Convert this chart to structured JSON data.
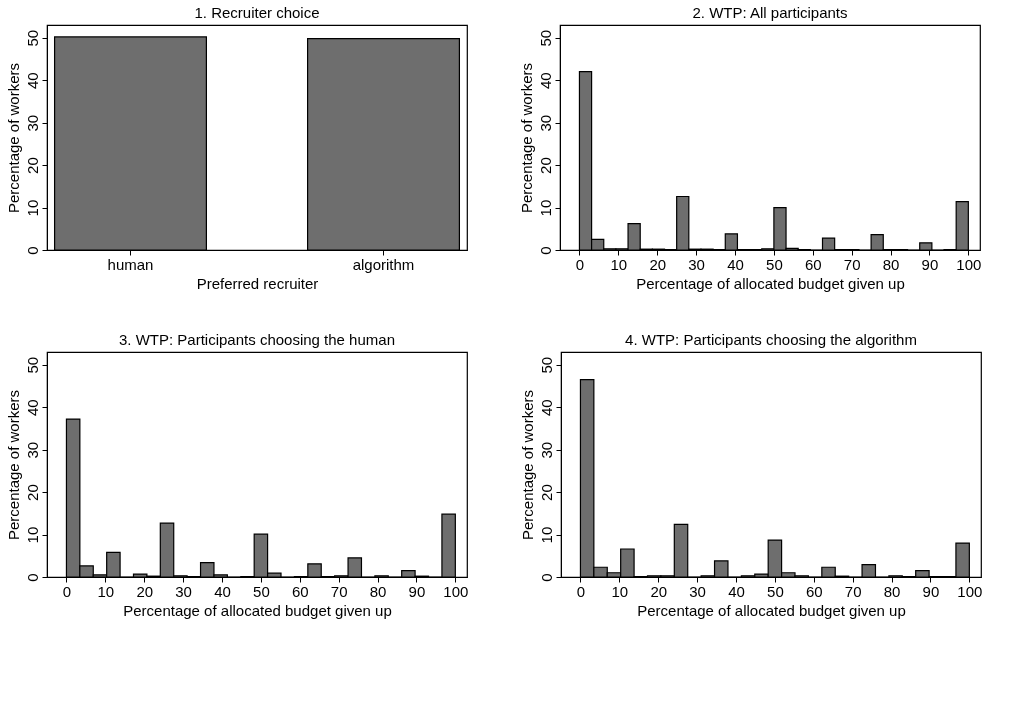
{
  "chart_data": [
    {
      "type": "bar",
      "title": "1. Recruiter choice",
      "xlabel": "Preferred recruiter",
      "ylabel": "Percentage of workers",
      "categories": [
        "human",
        "algorithm"
      ],
      "values": [
        50.2,
        49.8
      ],
      "color": "#6e6e6e",
      "ylim": [
        0,
        53
      ],
      "yticks": [
        0,
        10,
        20,
        30,
        40,
        50
      ]
    },
    {
      "type": "histogram",
      "title": "2. WTP: All participants",
      "xlabel": "Percentage of allocated budget given up",
      "ylabel": "Percentage of workers",
      "bins": [
        0,
        3.125,
        6.25,
        9.375,
        12.5,
        15.625,
        18.75,
        21.875,
        25,
        28.125,
        31.25,
        34.375,
        37.5,
        40.625,
        43.75,
        46.875,
        50,
        53.125,
        56.25,
        59.375,
        62.5,
        65.625,
        68.75,
        71.875,
        75,
        78.125,
        81.25,
        84.375,
        87.5,
        90.625,
        93.75,
        96.875,
        100
      ],
      "values": [
        42.0,
        2.5,
        0.3,
        0.3,
        6.2,
        0.2,
        0.2,
        0.1,
        12.6,
        0.2,
        0.2,
        0.1,
        3.8,
        0.1,
        0.1,
        0.3,
        10.0,
        0.4,
        0.1,
        0,
        2.8,
        0.1,
        0.1,
        0,
        3.6,
        0.1,
        0.1,
        0,
        1.7,
        0,
        0.1,
        11.4
      ],
      "color": "#6e6e6e",
      "xlim": [
        -5,
        103
      ],
      "xticks": [
        0,
        10,
        20,
        30,
        40,
        50,
        60,
        70,
        80,
        90,
        100
      ],
      "ylim": [
        0,
        53
      ],
      "yticks": [
        0,
        10,
        20,
        30,
        40,
        50
      ]
    },
    {
      "type": "histogram",
      "title": "3. WTP: Participants choosing the human",
      "xlabel": "Percentage of allocated budget given up",
      "ylabel": "Percentage of workers",
      "bins": [
        0,
        3.448,
        6.897,
        10.345,
        13.793,
        17.241,
        20.69,
        24.138,
        27.586,
        31.034,
        34.483,
        37.931,
        41.379,
        44.828,
        48.276,
        51.724,
        55.172,
        58.621,
        62.069,
        65.517,
        68.966,
        72.414,
        75.862,
        79.31,
        82.759,
        86.207,
        89.655,
        93.103,
        96.552,
        100
      ],
      "values": [
        37.2,
        2.6,
        0.5,
        5.8,
        0,
        0.7,
        0.2,
        12.7,
        0.3,
        0.1,
        3.4,
        0.5,
        0,
        0.1,
        10.1,
        0.9,
        0,
        0.1,
        3.1,
        0.1,
        0.3,
        4.5,
        0,
        0.3,
        0,
        1.5,
        0.2,
        0,
        14.8
      ],
      "color": "#6e6e6e",
      "xlim": [
        -5,
        103
      ],
      "xticks": [
        0,
        10,
        20,
        30,
        40,
        50,
        60,
        70,
        80,
        90,
        100
      ],
      "ylim": [
        0,
        53
      ],
      "yticks": [
        0,
        10,
        20,
        30,
        40,
        50
      ]
    },
    {
      "type": "histogram",
      "title": "4. WTP: Participants choosing the algorithm",
      "xlabel": "Percentage of allocated budget given up",
      "ylabel": "Percentage of workers",
      "bins": [
        0,
        3.448,
        6.897,
        10.345,
        13.793,
        17.241,
        20.69,
        24.138,
        27.586,
        31.034,
        34.483,
        37.931,
        41.379,
        44.828,
        48.276,
        51.724,
        55.172,
        58.621,
        62.069,
        65.517,
        68.966,
        72.414,
        75.862,
        79.31,
        82.759,
        86.207,
        89.655,
        93.103,
        96.552,
        100
      ],
      "values": [
        46.5,
        2.3,
        1.0,
        6.6,
        0.1,
        0.3,
        0.3,
        12.4,
        0,
        0.3,
        3.8,
        0,
        0.3,
        0.7,
        8.7,
        1.0,
        0.3,
        0,
        2.3,
        0.2,
        0,
        2.9,
        0,
        0.3,
        0.1,
        1.5,
        0.1,
        0.1,
        8.0
      ],
      "color": "#6e6e6e",
      "xlim": [
        -5,
        103
      ],
      "xticks": [
        0,
        10,
        20,
        30,
        40,
        50,
        60,
        70,
        80,
        90,
        100
      ],
      "ylim": [
        0,
        53
      ],
      "yticks": [
        0,
        10,
        20,
        30,
        40,
        50
      ]
    }
  ]
}
